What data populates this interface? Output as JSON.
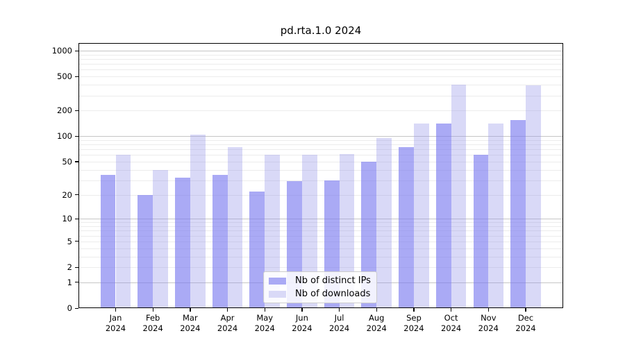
{
  "chart_data": {
    "type": "bar",
    "title": "pd.rta.1.0 2024",
    "y_scale": "log1p",
    "categories": [
      "Jan",
      "Feb",
      "Mar",
      "Apr",
      "May",
      "Jun",
      "Jul",
      "Aug",
      "Sep",
      "Oct",
      "Nov",
      "Dec"
    ],
    "year": "2024",
    "series": [
      {
        "name": "Nb of distinct IPs",
        "key": "distinct-ips",
        "color": "rgba(124,124,240,0.65)",
        "solid": "#aaaaf5",
        "values": [
          35,
          20,
          32,
          35,
          22,
          29,
          30,
          50,
          75,
          140,
          60,
          155
        ]
      },
      {
        "name": "Nb of downloads",
        "key": "downloads",
        "color": "rgba(146,146,232,0.35)",
        "solid": "#d9d9f7",
        "values": [
          60,
          40,
          105,
          75,
          60,
          60,
          62,
          95,
          140,
          400,
          140,
          395
        ]
      }
    ],
    "yticks": [
      0,
      1,
      2,
      5,
      10,
      20,
      50,
      100,
      200,
      500,
      1000
    ],
    "ylim": [
      0,
      1230
    ],
    "grid": {
      "major": [
        1,
        10,
        100,
        1000
      ],
      "major_color": "#c6c6c6",
      "minor_color": "#ececec"
    },
    "legend_position": "lower-center",
    "xlabel": "",
    "ylabel": ""
  },
  "colors": {
    "axis": "#000000",
    "background": "#ffffff",
    "text": "#000000"
  }
}
